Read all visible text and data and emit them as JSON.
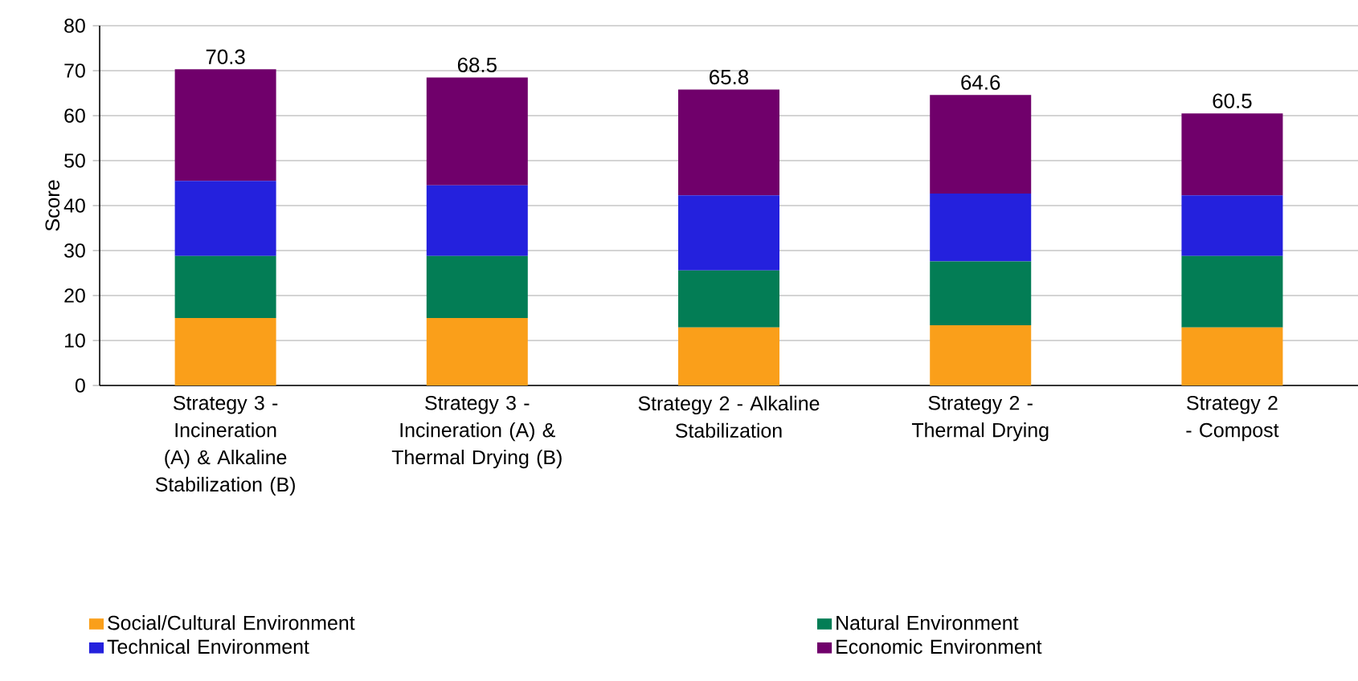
{
  "chart_data": {
    "type": "bar",
    "stacked": true,
    "ylabel": "Score",
    "categories": [
      "Strategy 3 - Incineration (A) & Alkaline Stabilization (B)",
      "Strategy 3 - Incineration (A) & Thermal Drying (B)",
      "Strategy 2 - Alkaline Stabilization",
      "Strategy 2 - Thermal Drying",
      "Strategy 2 - Compost"
    ],
    "series": [
      {
        "name": "Social/Cultural Environment",
        "color": "#fa9f1a",
        "values": [
          15.0,
          15.0,
          12.9,
          13.4,
          12.9
        ]
      },
      {
        "name": "Natural Environment",
        "color": "#037d55",
        "values": [
          13.8,
          13.8,
          12.7,
          14.2,
          15.9
        ]
      },
      {
        "name": "Technical Environment",
        "color": "#2421dd",
        "values": [
          16.7,
          15.7,
          16.7,
          15.1,
          13.5
        ]
      },
      {
        "name": "Economic Environment",
        "color": "#70006b",
        "values": [
          24.8,
          24.0,
          23.5,
          21.9,
          18.2
        ]
      }
    ],
    "totals": [
      "70.3",
      "68.5",
      "65.8",
      "64.6",
      "60.5"
    ],
    "ylim": [
      0,
      80
    ],
    "yticks": [
      0,
      10,
      20,
      30,
      40,
      50,
      60,
      70,
      80
    ],
    "grid": "y",
    "legend": "bottom"
  }
}
